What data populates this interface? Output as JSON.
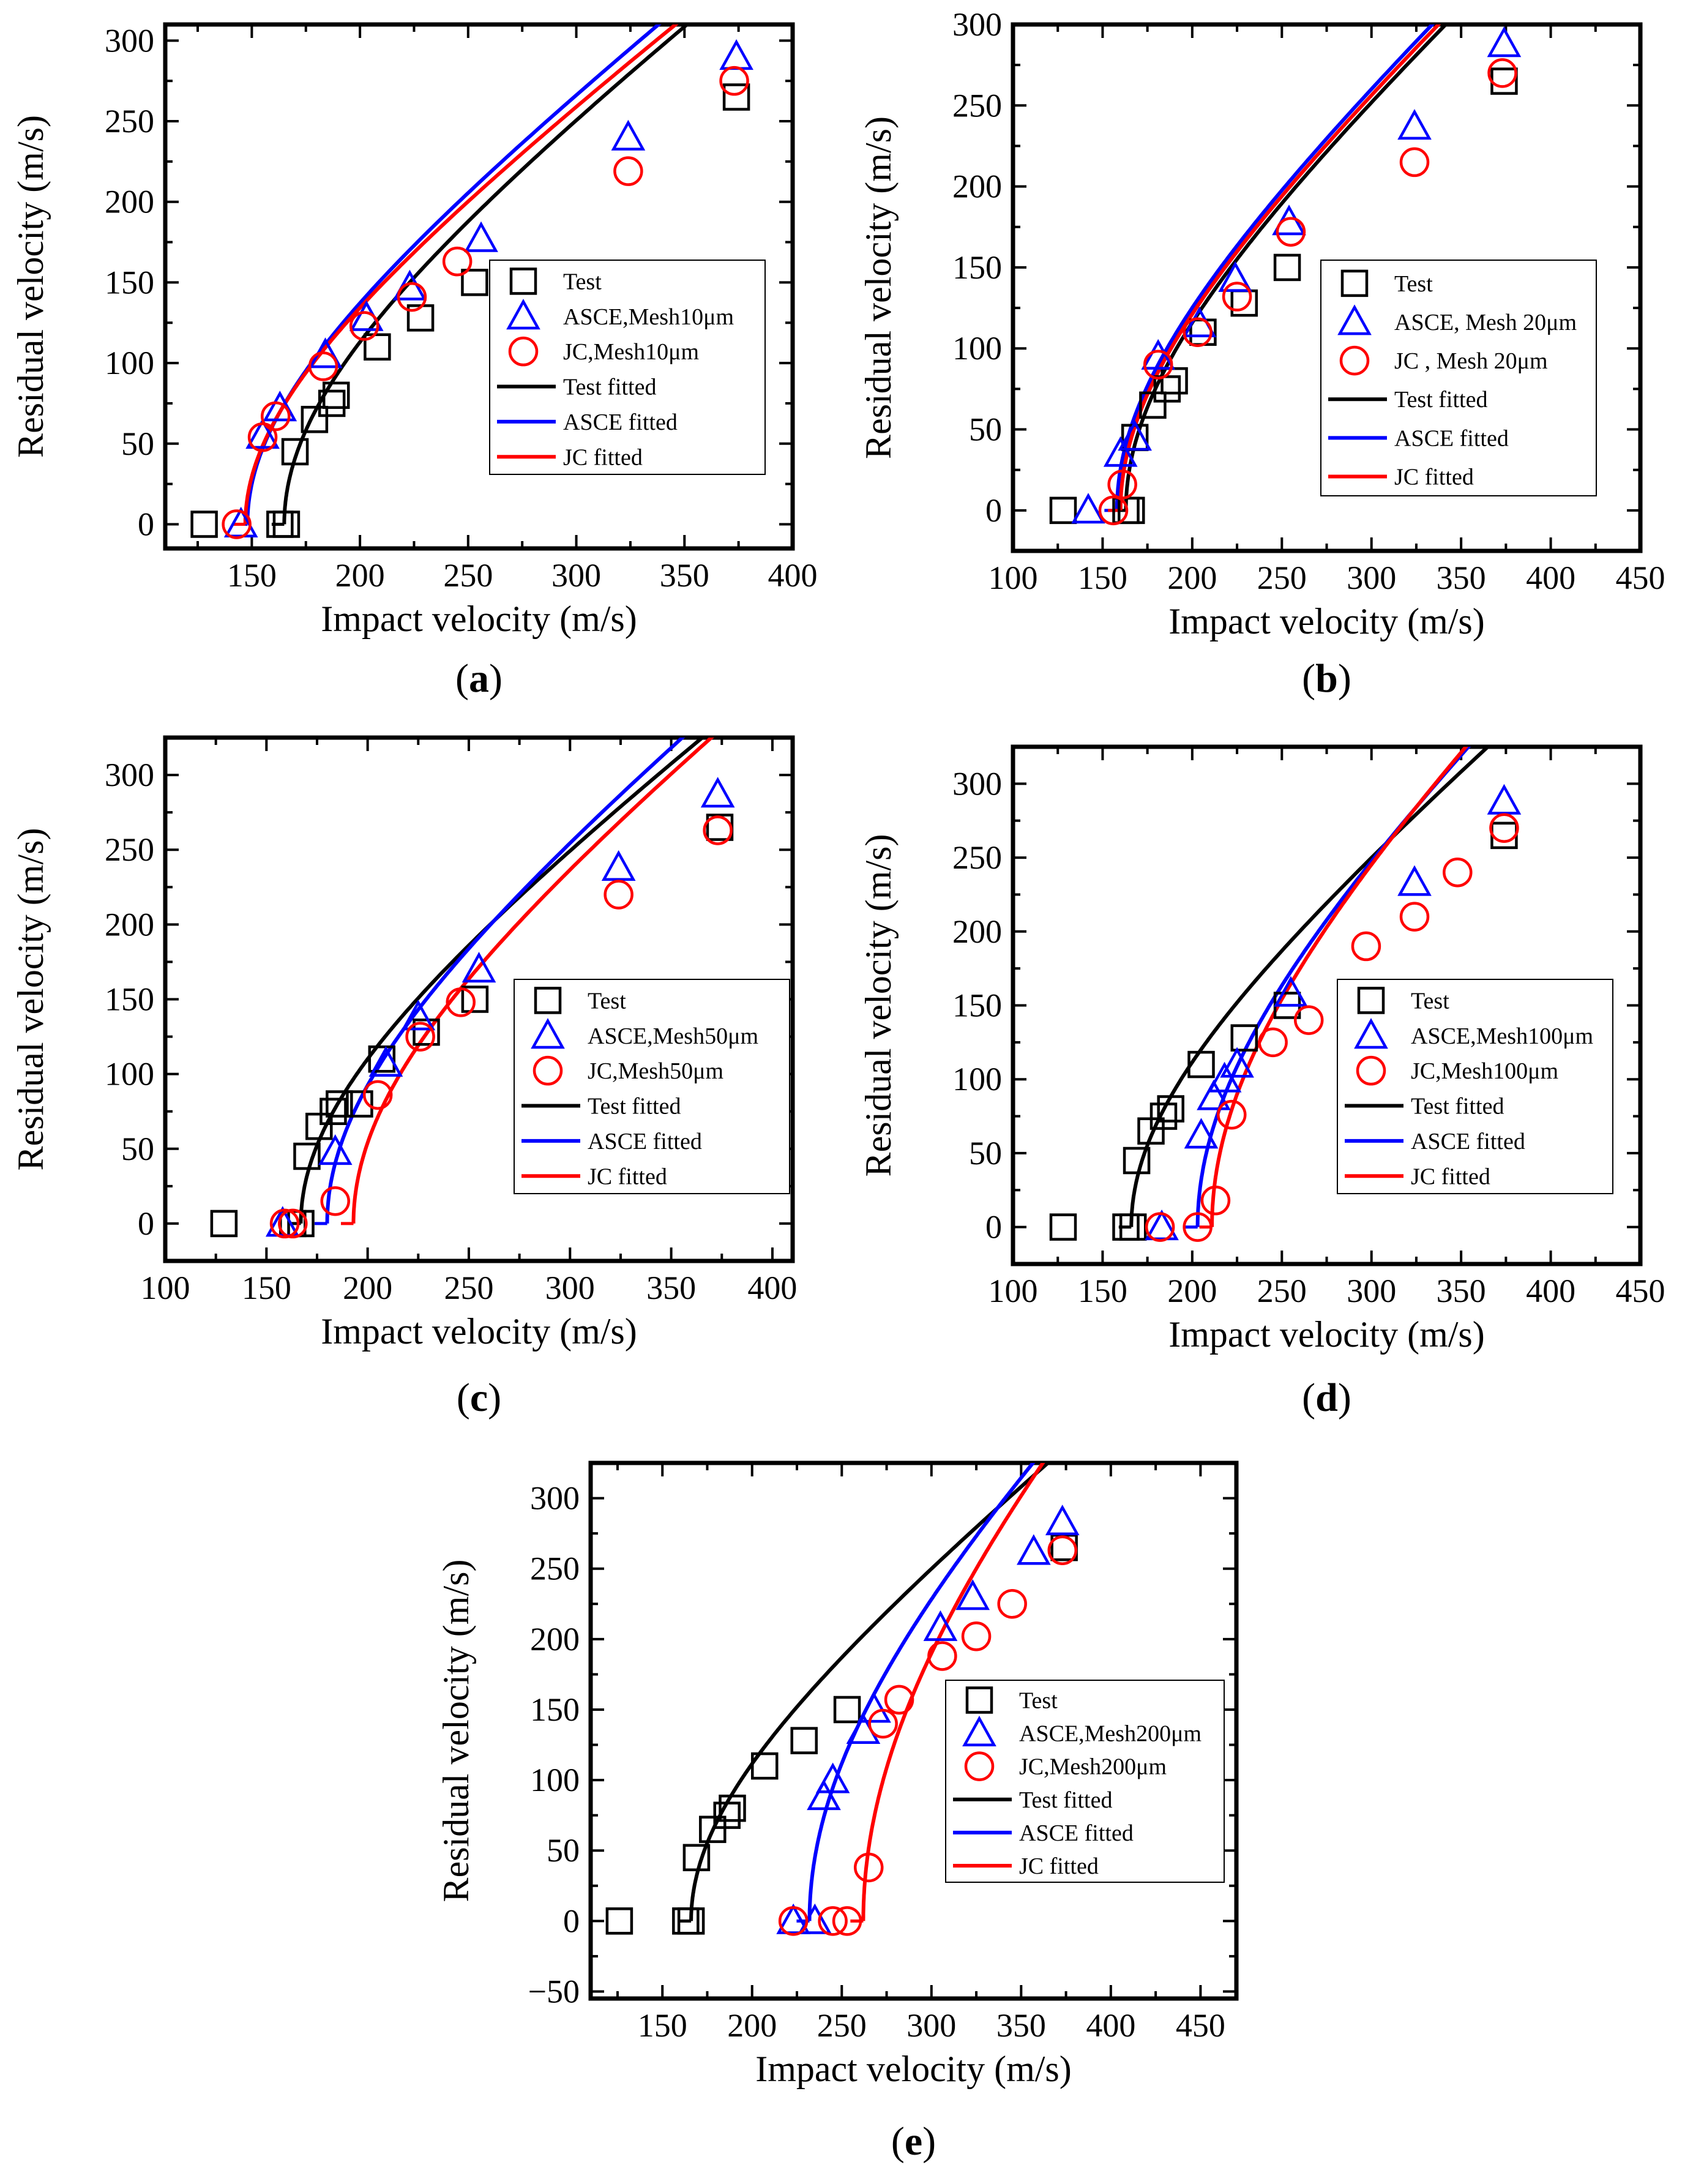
{
  "figure": {
    "colors": {
      "test": "#000000",
      "asce": "#0000ff",
      "jc": "#ff0000"
    }
  },
  "chart_data": [
    {
      "type": "scatter",
      "caption": "a",
      "xlabel": "Impact velocity (m/s)",
      "ylabel": "Residual velocity (m/s)",
      "xlim": [
        110,
        400
      ],
      "ylim": [
        -15,
        310
      ],
      "xticks": [
        150,
        200,
        250,
        300,
        350,
        400
      ],
      "yticks": [
        0,
        50,
        100,
        150,
        200,
        250,
        300
      ],
      "legend_position": "center-right",
      "series": [
        {
          "name": "Test",
          "marker": "square",
          "color": "#000000",
          "points": [
            [
              128,
              0
            ],
            [
              163,
              0
            ],
            [
              166,
              0
            ],
            [
              170,
              45
            ],
            [
              179,
              65
            ],
            [
              187,
              75
            ],
            [
              189,
              80
            ],
            [
              208,
              110
            ],
            [
              228,
              128
            ],
            [
              253,
              150
            ],
            [
              374,
              265
            ]
          ]
        },
        {
          "name": "ASCE,Mesh10μm",
          "marker": "triangle",
          "color": "#0000ff",
          "points": [
            [
              145,
              0
            ],
            [
              155,
              55
            ],
            [
              163,
              72
            ],
            [
              184,
              105
            ],
            [
              203,
              128
            ],
            [
              223,
              147
            ],
            [
              256,
              177
            ],
            [
              324,
              240
            ],
            [
              374,
              290
            ]
          ]
        },
        {
          "name": "JC,Mesh10μm",
          "marker": "circle",
          "color": "#ff0000",
          "points": [
            [
              143,
              0
            ],
            [
              155,
              54
            ],
            [
              161,
              67
            ],
            [
              183,
              98
            ],
            [
              202,
              123
            ],
            [
              224,
              141
            ],
            [
              245,
              163
            ],
            [
              324,
              219
            ],
            [
              373,
              275
            ]
          ]
        },
        {
          "name": "Test fitted",
          "line": true,
          "color": "#000000",
          "vbl": 165,
          "a": 1.0,
          "p": 2.0,
          "xmax": 374
        },
        {
          "name": "ASCE fitted",
          "line": true,
          "color": "#0000ff",
          "vbl": 148,
          "a": 1.02,
          "p": 2.0,
          "xmax": 374
        },
        {
          "name": "JC fitted",
          "line": true,
          "color": "#ff0000",
          "vbl": 147,
          "a": 0.99,
          "p": 2.0,
          "xmax": 374
        }
      ]
    },
    {
      "type": "scatter",
      "caption": "b",
      "xlabel": "Impact velocity (m/s)",
      "ylabel": "Residual velocity (m/s)",
      "xlim": [
        100,
        450
      ],
      "ylim": [
        -25,
        300
      ],
      "xticks": [
        100,
        150,
        200,
        250,
        300,
        350,
        400,
        450
      ],
      "yticks": [
        0,
        50,
        100,
        150,
        200,
        250,
        300
      ],
      "legend_position": "center-right",
      "series": [
        {
          "name": "Test",
          "marker": "square",
          "color": "#000000",
          "points": [
            [
              128,
              0
            ],
            [
              163,
              0
            ],
            [
              166,
              0
            ],
            [
              168,
              45
            ],
            [
              178,
              65
            ],
            [
              186,
              75
            ],
            [
              190,
              80
            ],
            [
              206,
              110
            ],
            [
              229,
              128
            ],
            [
              253,
              150
            ],
            [
              374,
              265
            ]
          ]
        },
        {
          "name": "ASCE, Mesh 20μm",
          "marker": "triangle",
          "color": "#0000ff",
          "points": [
            [
              142,
              0
            ],
            [
              160,
              35
            ],
            [
              168,
              45
            ],
            [
              181,
              95
            ],
            [
              204,
              115
            ],
            [
              224,
              143
            ],
            [
              254,
              178
            ],
            [
              324,
              237
            ],
            [
              374,
              288
            ]
          ]
        },
        {
          "name": "JC ,  Mesh 20μm",
          "marker": "circle",
          "color": "#ff0000",
          "points": [
            [
              156,
              0
            ],
            [
              161,
              16
            ],
            [
              181,
              90
            ],
            [
              203,
              110
            ],
            [
              225,
              132
            ],
            [
              255,
              172
            ],
            [
              324,
              215
            ],
            [
              373,
              270
            ]
          ]
        },
        {
          "name": "Test fitted",
          "line": true,
          "color": "#000000",
          "vbl": 163,
          "a": 1.0,
          "p": 2.0,
          "xmax": 374
        },
        {
          "name": "ASCE fitted",
          "line": true,
          "color": "#0000ff",
          "vbl": 158,
          "a": 1.02,
          "p": 2.0,
          "xmax": 374
        },
        {
          "name": "JC fitted",
          "line": true,
          "color": "#ff0000",
          "vbl": 160,
          "a": 1.01,
          "p": 2.0,
          "xmax": 374
        }
      ]
    },
    {
      "type": "scatter",
      "caption": "c",
      "xlabel": "Impact velocity (m/s)",
      "ylabel": "Residual velocity (m/s)",
      "xlim": [
        100,
        410
      ],
      "ylim": [
        -25,
        325
      ],
      "xticks": [
        100,
        150,
        200,
        250,
        300,
        350,
        400
      ],
      "yticks": [
        0,
        50,
        100,
        150,
        200,
        250,
        300
      ],
      "legend_position": "center-right",
      "series": [
        {
          "name": "Test",
          "marker": "square",
          "color": "#000000",
          "points": [
            [
              129,
              0
            ],
            [
              163,
              0
            ],
            [
              167,
              0
            ],
            [
              170,
              45
            ],
            [
              176,
              65
            ],
            [
              183,
              75
            ],
            [
              186,
              80
            ],
            [
              196,
              80
            ],
            [
              207,
              110
            ],
            [
              229,
              128
            ],
            [
              253,
              150
            ],
            [
              374,
              265
            ]
          ]
        },
        {
          "name": "ASCE,Mesh50μm",
          "marker": "triangle",
          "color": "#0000ff",
          "points": [
            [
              158,
              0
            ],
            [
              184,
              48
            ],
            [
              209,
              107
            ],
            [
              225,
              138
            ],
            [
              255,
              170
            ],
            [
              324,
              238
            ],
            [
              373,
              287
            ]
          ]
        },
        {
          "name": "JC,Mesh50μm",
          "marker": "circle",
          "color": "#ff0000",
          "points": [
            [
              159,
              0
            ],
            [
              163,
              0
            ],
            [
              184,
              15
            ],
            [
              205,
              86
            ],
            [
              226,
              125
            ],
            [
              246,
              148
            ],
            [
              324,
              220
            ],
            [
              373,
              263
            ]
          ]
        },
        {
          "name": "Test fitted",
          "line": true,
          "color": "#000000",
          "vbl": 167,
          "a": 1.0,
          "p": 2.0,
          "xmax": 374
        },
        {
          "name": "ASCE fitted",
          "line": true,
          "color": "#0000ff",
          "vbl": 180,
          "a": 1.06,
          "p": 2.0,
          "xmax": 374
        },
        {
          "name": "JC fitted",
          "line": true,
          "color": "#ff0000",
          "vbl": 193,
          "a": 1.03,
          "p": 2.0,
          "xmax": 374
        }
      ]
    },
    {
      "type": "scatter",
      "caption": "d",
      "xlabel": "Impact velocity (m/s)",
      "ylabel": "Residual velocity (m/s)",
      "xlim": [
        100,
        450
      ],
      "ylim": [
        -25,
        325
      ],
      "xticks": [
        100,
        150,
        200,
        250,
        300,
        350,
        400,
        450
      ],
      "yticks": [
        0,
        50,
        100,
        150,
        200,
        250,
        300
      ],
      "legend_position": "center-right",
      "series": [
        {
          "name": "Test",
          "marker": "square",
          "color": "#000000",
          "points": [
            [
              128,
              0
            ],
            [
              163,
              0
            ],
            [
              167,
              0
            ],
            [
              169,
              45
            ],
            [
              177,
              65
            ],
            [
              184,
              75
            ],
            [
              188,
              80
            ],
            [
              205,
              110
            ],
            [
              229,
              128
            ],
            [
              253,
              150
            ],
            [
              374,
              265
            ]
          ]
        },
        {
          "name": "ASCE,Mesh100μm",
          "marker": "triangle",
          "color": "#0000ff",
          "points": [
            [
              183,
              0
            ],
            [
              205,
              62
            ],
            [
              212,
              88
            ],
            [
              218,
              100
            ],
            [
              225,
              110
            ],
            [
              255,
              158
            ],
            [
              324,
              233
            ],
            [
              374,
              288
            ]
          ]
        },
        {
          "name": "JC,Mesh100μm",
          "marker": "circle",
          "color": "#ff0000",
          "points": [
            [
              182,
              0
            ],
            [
              203,
              0
            ],
            [
              213,
              18
            ],
            [
              222,
              76
            ],
            [
              245,
              125
            ],
            [
              265,
              140
            ],
            [
              297,
              190
            ],
            [
              324,
              210
            ],
            [
              348,
              240
            ],
            [
              374,
              270
            ]
          ]
        },
        {
          "name": "Test fitted",
          "line": true,
          "color": "#000000",
          "vbl": 166,
          "a": 1.0,
          "p": 2.0,
          "xmax": 374
        },
        {
          "name": "ASCE fitted",
          "line": true,
          "color": "#0000ff",
          "vbl": 203,
          "a": 1.12,
          "p": 2.0,
          "xmax": 374
        },
        {
          "name": "JC fitted",
          "line": true,
          "color": "#ff0000",
          "vbl": 211,
          "a": 1.15,
          "p": 2.0,
          "xmax": 374
        }
      ]
    },
    {
      "type": "scatter",
      "caption": "e",
      "xlabel": "Impact velocity (m/s)",
      "ylabel": "Residual velocity (m/s)",
      "xlim": [
        110,
        470
      ],
      "ylim": [
        -55,
        325
      ],
      "xticks": [
        150,
        200,
        250,
        300,
        350,
        400,
        450
      ],
      "yticks": [
        -50,
        0,
        50,
        100,
        150,
        200,
        250,
        300
      ],
      "legend_position": "center-right",
      "series": [
        {
          "name": "Test",
          "marker": "square",
          "color": "#000000",
          "points": [
            [
              126,
              0
            ],
            [
              163,
              0
            ],
            [
              166,
              0
            ],
            [
              169,
              45
            ],
            [
              178,
              65
            ],
            [
              186,
              75
            ],
            [
              189,
              80
            ],
            [
              207,
              110
            ],
            [
              229,
              128
            ],
            [
              253,
              150
            ],
            [
              374,
              265
            ]
          ]
        },
        {
          "name": "ASCE,Mesh200μm",
          "marker": "triangle",
          "color": "#0000ff",
          "points": [
            [
              223,
              0
            ],
            [
              235,
              0
            ],
            [
              240,
              88
            ],
            [
              245,
              100
            ],
            [
              262,
              135
            ],
            [
              268,
              150
            ],
            [
              305,
              208
            ],
            [
              323,
              230
            ],
            [
              357,
              262
            ],
            [
              373,
              283
            ]
          ]
        },
        {
          "name": "JC,Mesh200μm",
          "marker": "circle",
          "color": "#ff0000",
          "points": [
            [
              223,
              0
            ],
            [
              245,
              0
            ],
            [
              253,
              0
            ],
            [
              265,
              38
            ],
            [
              273,
              140
            ],
            [
              282,
              157
            ],
            [
              306,
              188
            ],
            [
              325,
              202
            ],
            [
              345,
              225
            ],
            [
              373,
              263
            ]
          ]
        },
        {
          "name": "Test fitted",
          "line": true,
          "color": "#000000",
          "vbl": 166,
          "a": 1.0,
          "p": 2.0,
          "xmax": 374
        },
        {
          "name": "ASCE fitted",
          "line": true,
          "color": "#0000ff",
          "vbl": 232,
          "a": 1.2,
          "p": 2.0,
          "xmax": 374
        },
        {
          "name": "JC fitted",
          "line": true,
          "color": "#ff0000",
          "vbl": 262,
          "a": 1.3,
          "p": 2.0,
          "xmax": 374
        }
      ]
    }
  ]
}
